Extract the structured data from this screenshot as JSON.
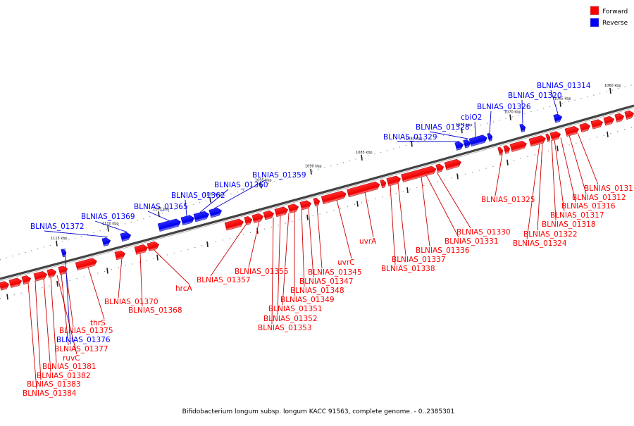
{
  "colors": {
    "forward": "#ff0000",
    "reverse": "#0000ff",
    "connector_forward": "#cc0000",
    "connector_reverse": "#0000cc",
    "backbone": "#333333"
  },
  "legend": {
    "forward_label": "Forward",
    "reverse_label": "Reverse"
  },
  "caption": "Bifidobacterium longum subsp. longum KACC 91563, complete genome. - 0..2385301",
  "scale_ticks": [
    "1060 kbp",
    "1065 kbp",
    "1070 kbp",
    "1075 kbp",
    "1080 kbp",
    "1085 kbp",
    "1090 kbp",
    "1095 kbp",
    "1100 kbp",
    "1105 kbp",
    "1110 kbp",
    "1115 kbp"
  ],
  "forward_labels": [
    "BLNIAS_01311",
    "BLNIAS_01312",
    "BLNIAS_01316",
    "BLNIAS_01317",
    "BLNIAS_01318",
    "BLNIAS_01322",
    "BLNIAS_01324",
    "BLNIAS_01325",
    "BLNIAS_01330",
    "BLNIAS_01331",
    "BLNIAS_01336",
    "BLNIAS_01337",
    "BLNIAS_01338",
    "uvrA",
    "uvrC",
    "BLNIAS_01345",
    "BLNIAS_01347",
    "BLNIAS_01348",
    "BLNIAS_01349",
    "BLNIAS_01351",
    "BLNIAS_01352",
    "BLNIAS_01353",
    "BLNIAS_01355",
    "BLNIAS_01357",
    "hrcA",
    "BLNIAS_01368",
    "BLNIAS_01370",
    "thrS",
    "BLNIAS_01375",
    "BLNIAS_01377",
    "ruvC",
    "BLNIAS_01381",
    "BLNIAS_01382",
    "BLNIAS_01383",
    "BLNIAS_01384"
  ],
  "reverse_labels": [
    "BLNIAS_01314",
    "BLNIAS_01320",
    "BLNIAS_01326",
    "cbiO2",
    "BLNIAS_01328",
    "BLNIAS_01329",
    "BLNIAS_01359",
    "BLNIAS_01360",
    "BLNIAS_01362",
    "BLNIAS_01365",
    "BLNIAS_01369",
    "BLNIAS_01372",
    "BLNIAS_01376"
  ]
}
